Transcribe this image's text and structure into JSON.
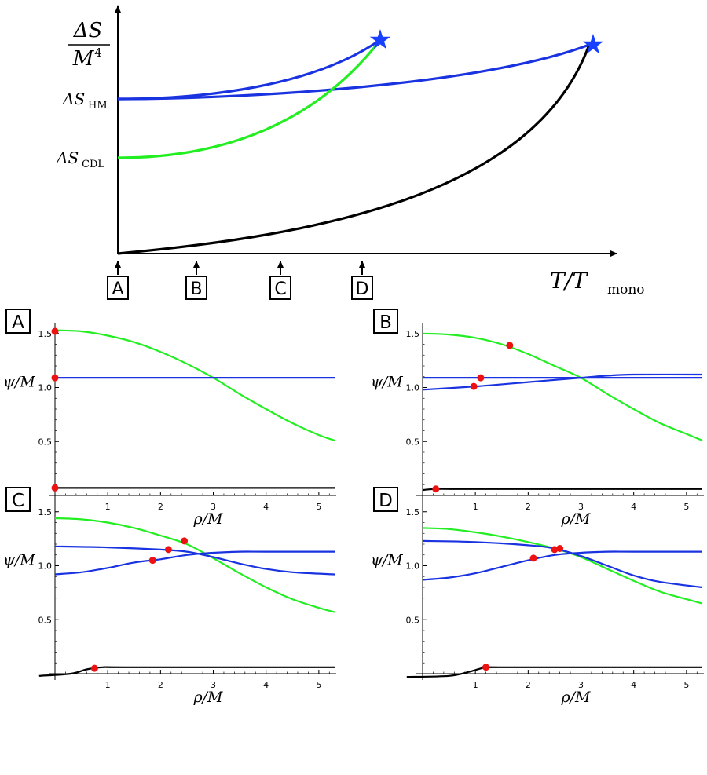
{
  "main_plot": {
    "y_label_num": "ΔS",
    "y_label_den": "M",
    "y_label_den_exp": "4",
    "tick_hm_delta": "ΔS",
    "tick_hm_sub": "HM",
    "tick_cdl_delta": "ΔS",
    "tick_cdl_sub": "CDL",
    "x_label_T": "T",
    "x_label_slash": "/T",
    "x_label_sub": "mono",
    "markers": [
      "A",
      "B",
      "C",
      "D"
    ],
    "colors": {
      "blue": "#1a33e0",
      "green": "#22ee22",
      "black": "#000000",
      "star": "#1a40ff"
    }
  },
  "panel_labels": [
    "A",
    "B",
    "C",
    "D"
  ],
  "axis_text": {
    "ylabel_psi": "ψ",
    "ylabel_rest": "/M",
    "xlabel": "ρ/M",
    "yticks": [
      "1.5",
      "1.0",
      "0.5"
    ],
    "xticks": [
      "1",
      "2",
      "3",
      "4",
      "5"
    ]
  },
  "chart_data": [
    {
      "type": "line",
      "title": "",
      "xlabel": "T/T_mono",
      "ylabel": "ΔS/M^4",
      "series": [
        {
          "color": "#1a33e0",
          "x": [
            0,
            0.2,
            0.5,
            0.8,
            1.1,
            1.45
          ],
          "y": [
            0.65,
            0.655,
            0.69,
            0.77,
            0.88,
            0.995
          ]
        },
        {
          "color": "#1a33e0",
          "x": [
            0,
            0.5,
            1.0,
            1.5,
            2.0,
            2.5,
            2.99
          ],
          "y": [
            0.65,
            0.66,
            0.69,
            0.73,
            0.78,
            0.85,
            0.98
          ]
        },
        {
          "color": "#22ee22",
          "x": [
            0,
            0.2,
            0.5,
            0.8,
            1.1,
            1.4,
            1.45
          ],
          "y": [
            0.4,
            0.42,
            0.48,
            0.58,
            0.72,
            0.93,
            0.98
          ]
        },
        {
          "color": "#000000",
          "x": [
            0,
            0.5,
            1.0,
            1.5,
            2.0,
            2.5,
            2.8,
            2.99
          ],
          "y": [
            0.0,
            0.04,
            0.1,
            0.18,
            0.29,
            0.46,
            0.65,
            0.96
          ]
        }
      ],
      "endpoints": [
        {
          "x": 1.46,
          "y": 0.99
        },
        {
          "x": 2.99,
          "y": 0.97
        }
      ],
      "markers_x": [
        0,
        0.45,
        0.95,
        1.42
      ]
    },
    {
      "type": "line",
      "panel": "A",
      "xlim": [
        0,
        5.3
      ],
      "ylim": [
        0,
        1.6
      ],
      "series": [
        {
          "color": "#22ee22",
          "x": [
            0,
            0.5,
            1.0,
            1.5,
            2.0,
            2.5,
            3.0,
            3.5,
            4.0,
            4.5,
            5.0,
            5.3
          ],
          "y": [
            1.53,
            1.52,
            1.48,
            1.42,
            1.33,
            1.22,
            1.09,
            0.94,
            0.8,
            0.67,
            0.56,
            0.51
          ]
        },
        {
          "color": "#1a33e0",
          "x": [
            0,
            5.3
          ],
          "y": [
            1.09,
            1.09
          ]
        },
        {
          "color": "#000000",
          "x": [
            0,
            5.3
          ],
          "y": [
            0.07,
            0.07
          ]
        }
      ],
      "points": [
        {
          "x": 0,
          "y": 1.52
        },
        {
          "x": 0,
          "y": 1.09
        },
        {
          "x": 0,
          "y": 0.07
        }
      ]
    },
    {
      "type": "line",
      "panel": "B",
      "xlim": [
        0,
        5.3
      ],
      "ylim": [
        0,
        1.6
      ],
      "series": [
        {
          "color": "#22ee22",
          "x": [
            0,
            0.5,
            1.0,
            1.5,
            2.0,
            2.5,
            3.0,
            3.5,
            4.0,
            4.5,
            5.0,
            5.3
          ],
          "y": [
            1.5,
            1.49,
            1.46,
            1.4,
            1.31,
            1.2,
            1.09,
            0.94,
            0.8,
            0.67,
            0.57,
            0.51
          ]
        },
        {
          "color": "#1a33e0",
          "x": [
            0,
            1.0,
            2.0,
            3.0,
            4.0,
            5.3
          ],
          "y": [
            1.09,
            1.09,
            1.09,
            1.09,
            1.09,
            1.09
          ]
        },
        {
          "color": "#1a33e0",
          "x": [
            0,
            1.0,
            2.0,
            3.0,
            3.5,
            4.0,
            5.3
          ],
          "y": [
            0.98,
            1.01,
            1.05,
            1.09,
            1.11,
            1.12,
            1.12
          ]
        },
        {
          "color": "#000000",
          "x": [
            0,
            0.25,
            1.0,
            5.3
          ],
          "y": [
            0.05,
            0.06,
            0.06,
            0.06
          ]
        }
      ],
      "points": [
        {
          "x": 1.65,
          "y": 1.39
        },
        {
          "x": 1.1,
          "y": 1.09
        },
        {
          "x": 0.97,
          "y": 1.01
        },
        {
          "x": 0.25,
          "y": 0.06
        }
      ]
    },
    {
      "type": "line",
      "panel": "C",
      "xlim": [
        0,
        5.3
      ],
      "ylim": [
        0,
        1.6
      ],
      "series": [
        {
          "color": "#22ee22",
          "x": [
            0,
            0.5,
            1.0,
            1.5,
            2.0,
            2.5,
            3.0,
            3.5,
            4.0,
            4.5,
            5.0,
            5.3
          ],
          "y": [
            1.44,
            1.43,
            1.4,
            1.35,
            1.28,
            1.2,
            1.07,
            0.93,
            0.8,
            0.69,
            0.61,
            0.57
          ]
        },
        {
          "color": "#1a33e0",
          "x": [
            0,
            1.0,
            2.0,
            2.5,
            3.0,
            3.5,
            4.0,
            4.5,
            5.3
          ],
          "y": [
            1.18,
            1.17,
            1.15,
            1.13,
            1.08,
            1.02,
            0.97,
            0.94,
            0.92
          ]
        },
        {
          "color": "#1a33e0",
          "x": [
            0,
            0.5,
            1.0,
            1.5,
            2.0,
            2.5,
            3.0,
            3.5,
            4.0,
            5.3
          ],
          "y": [
            0.92,
            0.94,
            0.98,
            1.03,
            1.06,
            1.1,
            1.12,
            1.13,
            1.13,
            1.13
          ]
        },
        {
          "color": "#000000",
          "x": [
            -0.3,
            0.3,
            0.6,
            0.9,
            1.5,
            5.3
          ],
          "y": [
            -0.02,
            0.0,
            0.04,
            0.06,
            0.06,
            0.06
          ]
        }
      ],
      "points": [
        {
          "x": 2.45,
          "y": 1.23
        },
        {
          "x": 2.15,
          "y": 1.15
        },
        {
          "x": 1.85,
          "y": 1.05
        },
        {
          "x": 0.75,
          "y": 0.05
        }
      ]
    },
    {
      "type": "line",
      "panel": "D",
      "xlim": [
        0,
        5.3
      ],
      "ylim": [
        0,
        1.6
      ],
      "series": [
        {
          "color": "#22ee22",
          "x": [
            0,
            0.5,
            1.0,
            1.5,
            2.0,
            2.5,
            3.0,
            3.5,
            4.0,
            4.5,
            5.0,
            5.3
          ],
          "y": [
            1.35,
            1.34,
            1.31,
            1.27,
            1.22,
            1.16,
            1.08,
            0.97,
            0.86,
            0.76,
            0.69,
            0.65
          ]
        },
        {
          "color": "#1a33e0",
          "x": [
            0,
            1.0,
            2.0,
            2.5,
            3.0,
            3.5,
            4.0,
            4.5,
            5.3
          ],
          "y": [
            1.23,
            1.22,
            1.19,
            1.16,
            1.09,
            1.0,
            0.91,
            0.85,
            0.8
          ]
        },
        {
          "color": "#1a33e0",
          "x": [
            0,
            0.5,
            1.0,
            1.5,
            2.0,
            2.5,
            3.0,
            3.5,
            4.0,
            5.3
          ],
          "y": [
            0.87,
            0.89,
            0.93,
            0.99,
            1.05,
            1.1,
            1.12,
            1.13,
            1.13,
            1.13
          ]
        },
        {
          "color": "#000000",
          "x": [
            -0.3,
            0.5,
            0.9,
            1.2,
            1.5,
            5.3
          ],
          "y": [
            -0.03,
            -0.02,
            0.02,
            0.06,
            0.06,
            0.06
          ]
        }
      ],
      "points": [
        {
          "x": 2.6,
          "y": 1.16
        },
        {
          "x": 2.5,
          "y": 1.15
        },
        {
          "x": 2.1,
          "y": 1.07
        },
        {
          "x": 1.2,
          "y": 0.06
        }
      ]
    }
  ]
}
